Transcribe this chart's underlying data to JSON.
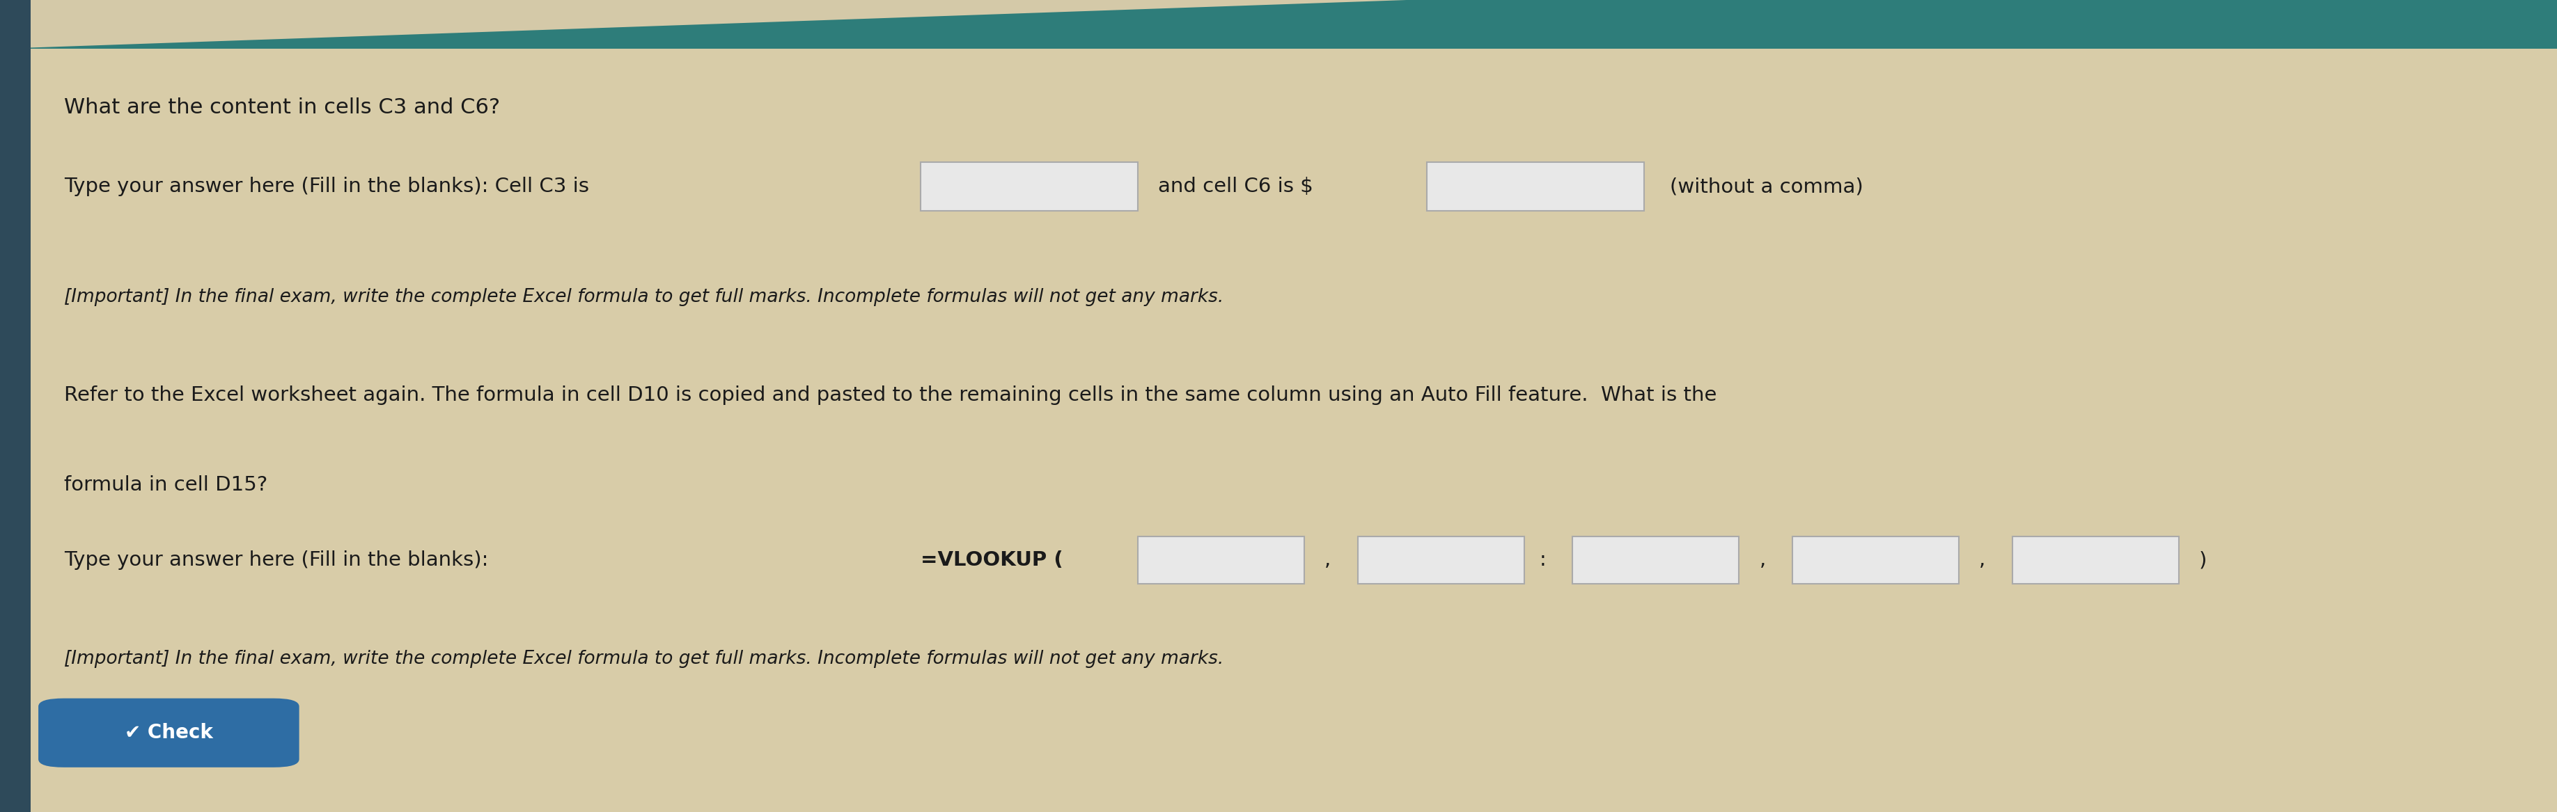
{
  "bg_color": "#d4c9a8",
  "top_bar_color": "#2e7d7a",
  "left_bar_color": "#2e4a5a",
  "left_bar_width": 0.012,
  "question1_title": "What are the content in cells C3 and C6?",
  "question1_line1": "Type your answer here (Fill in the blanks): Cell C3 is",
  "question1_line1_and": "and cell C6 is $",
  "question1_line1_end": "(without a comma)",
  "question1_italic": "[Important] In the final exam, write the complete Excel formula to get full marks. Incomplete formulas will not get any marks.",
  "question2_text1": "Refer to the Excel worksheet again. The formula in cell D10 is copied and pasted to the remaining cells in the same column using an Auto Fill feature.  What is the",
  "question2_text2": "formula in cell D15?",
  "question2_italic": "[Important] In the final exam, write the complete Excel formula to get full marks. Incomplete formulas will not get any marks.",
  "check_btn_color": "#2e6da4",
  "check_btn_text": "✔ Check",
  "input_box_color": "#e8e8e8",
  "input_border_color": "#aaaaaa",
  "text_color": "#1a1a1a",
  "bold_vlookup": "=VLOOKUP ("
}
